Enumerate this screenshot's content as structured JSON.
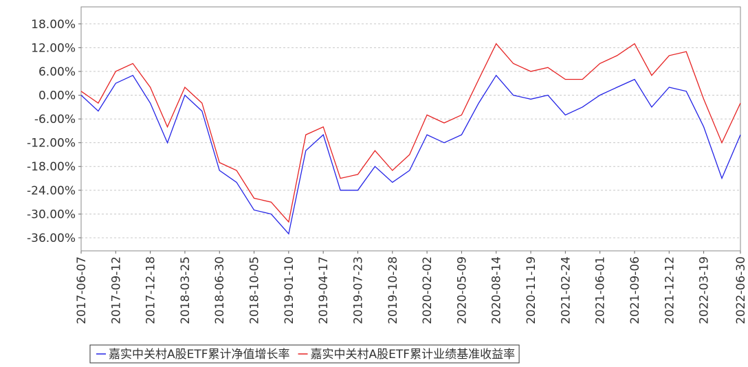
{
  "chart_data": {
    "type": "line",
    "x": [
      "2017-06-07",
      "2017-07-25",
      "2017-09-12",
      "2017-10-30",
      "2017-12-18",
      "2018-02-04",
      "2018-03-25",
      "2018-05-12",
      "2018-06-30",
      "2018-08-17",
      "2018-10-05",
      "2018-11-22",
      "2019-01-10",
      "2019-02-27",
      "2019-04-17",
      "2019-06-04",
      "2019-07-23",
      "2019-09-09",
      "2019-10-28",
      "2019-12-15",
      "2020-02-02",
      "2020-03-21",
      "2020-05-09",
      "2020-06-26",
      "2020-08-14",
      "2020-10-01",
      "2020-11-19",
      "2021-01-06",
      "2021-02-24",
      "2021-04-13",
      "2021-06-01",
      "2021-07-19",
      "2021-09-06",
      "2021-10-24",
      "2021-12-12",
      "2022-01-29",
      "2022-03-19",
      "2022-05-09",
      "2022-06-30"
    ],
    "series": [
      {
        "name": "嘉实中关村A股ETF累计净值增长率",
        "color": "#2323e6",
        "values": [
          0,
          -4,
          3,
          5,
          -2,
          -12,
          0,
          -4,
          -19,
          -22,
          -29,
          -30,
          -35,
          -14,
          -10,
          -24,
          -24,
          -18,
          -22,
          -19,
          -10,
          -12,
          -10,
          -2,
          5,
          0,
          -1,
          0,
          -5,
          -3,
          0,
          2,
          4,
          -3,
          2,
          1,
          -8,
          -21,
          -10
        ]
      },
      {
        "name": "嘉实中关村A股ETF累计业绩基准收益率",
        "color": "#e62323",
        "values": [
          1,
          -2,
          6,
          8,
          2,
          -8,
          2,
          -2,
          -17,
          -19,
          -26,
          -27,
          -32,
          -10,
          -8,
          -21,
          -20,
          -14,
          -19,
          -15,
          -5,
          -7,
          -5,
          4,
          13,
          8,
          6,
          7,
          4,
          4,
          8,
          10,
          13,
          5,
          10,
          11,
          -1,
          -12,
          -2
        ]
      }
    ],
    "ylim": [
      -39.3,
      22.3
    ],
    "yticks": [
      {
        "value": -36,
        "label": "-36.00%"
      },
      {
        "value": -30,
        "label": "-30.00%"
      },
      {
        "value": -24,
        "label": "-24.00%"
      },
      {
        "value": -18,
        "label": "-18.00%"
      },
      {
        "value": -12,
        "label": "-12.00%"
      },
      {
        "value": -6,
        "label": "-6.00%"
      },
      {
        "value": 0,
        "label": "0.00%"
      },
      {
        "value": 6,
        "label": "6.00%"
      },
      {
        "value": 12,
        "label": "12.00%"
      },
      {
        "value": 18,
        "label": "18.00%"
      }
    ],
    "xticks": [
      "2017-06-07",
      "2017-09-12",
      "2017-12-18",
      "2018-03-25",
      "2018-06-30",
      "2018-10-05",
      "2019-01-10",
      "2019-04-17",
      "2019-07-23",
      "2019-10-28",
      "2020-02-02",
      "2020-05-09",
      "2020-08-14",
      "2020-11-19",
      "2021-02-24",
      "2021-06-01",
      "2021-09-06",
      "2021-12-12",
      "2022-03-19",
      "2022-06-30"
    ],
    "grid": true
  }
}
